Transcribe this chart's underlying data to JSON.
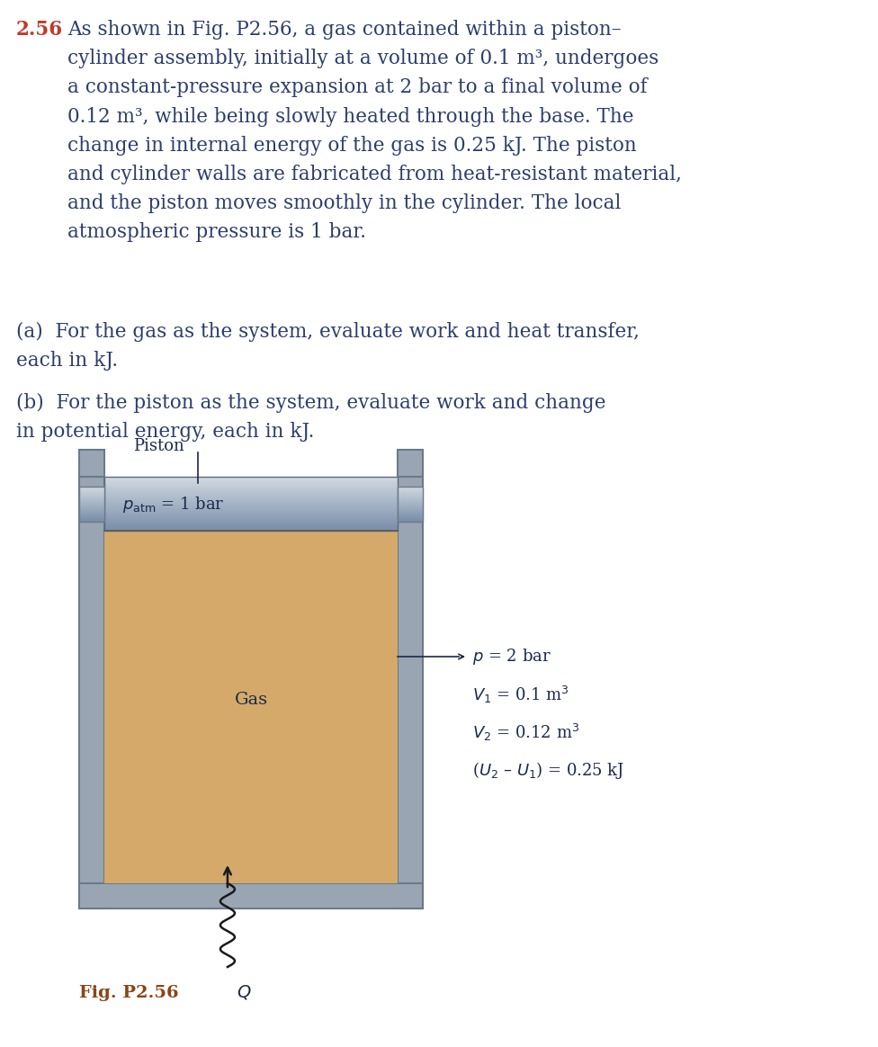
{
  "title_number": "2.56",
  "title_number_color": "#c0392b",
  "main_text_color": "#2c3e6b",
  "fig_label": "Fig. P2.56",
  "fig_label_color": "#8B4513",
  "annotation_lines": [
    "$p$ = 2 bar",
    "$V_1$ = 0.1 m$^3$",
    "$V_2$ = 0.12 m$^3$",
    "($U_2$ – $U_1$) = 0.25 kJ"
  ],
  "cylinder_outer_color": "#9aa5b4",
  "gas_color": "#d4a96a",
  "bg_color": "#ffffff",
  "text_dark": "#1a2a4a",
  "line_color": "#2c3e6b"
}
